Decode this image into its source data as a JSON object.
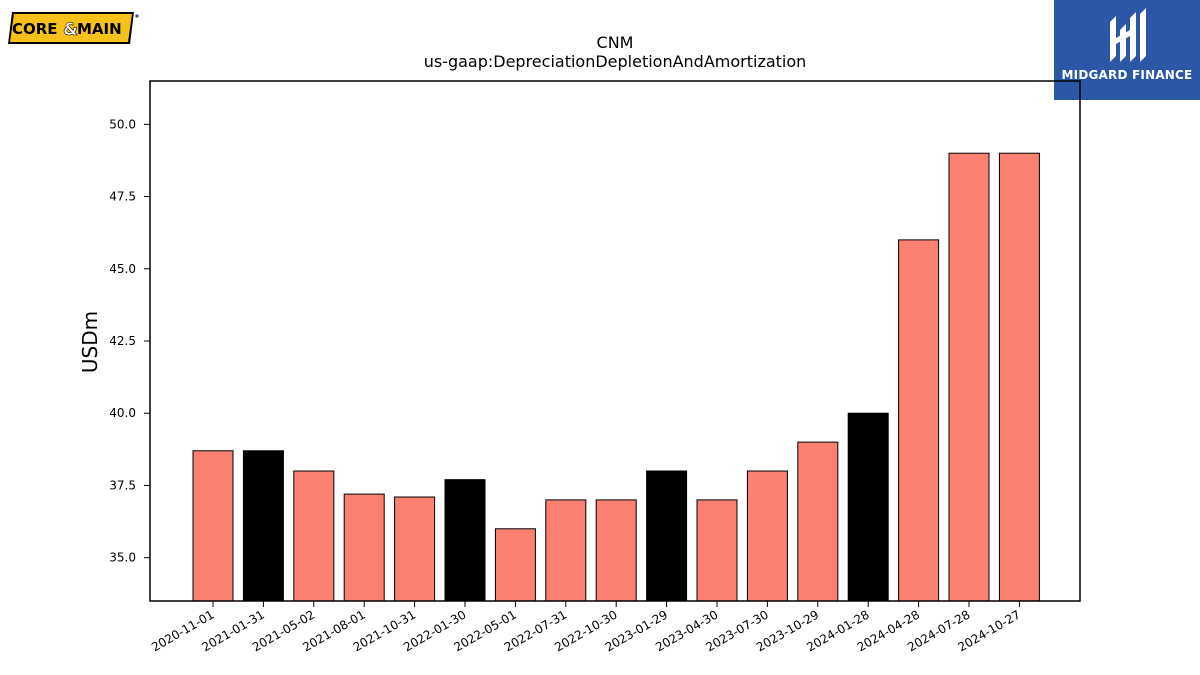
{
  "logos": {
    "left_text_a": "CORE",
    "left_text_amp": "&",
    "left_text_b": "MAIN",
    "right_text": "MIDGARD FINANCE"
  },
  "colors": {
    "bar_default": "#fa8072",
    "bar_highlight": "#000000",
    "brand_blue": "#2b57a6",
    "logo_yellow": "#f6c21a"
  },
  "chart_data": {
    "type": "bar",
    "title": "CNM",
    "subtitle": "us-gaap:DepreciationDepletionAndAmortization",
    "xlabel": "",
    "ylabel": "USDm",
    "ylim": [
      33.5,
      51.5
    ],
    "yticks": [
      "35.0",
      "37.5",
      "40.0",
      "42.5",
      "45.0",
      "47.5",
      "50.0"
    ],
    "grid": false,
    "categories": [
      "2020-11-01",
      "2021-01-31",
      "2021-05-02",
      "2021-08-01",
      "2021-10-31",
      "2022-01-30",
      "2022-05-01",
      "2022-07-31",
      "2022-10-30",
      "2023-01-29",
      "2023-04-30",
      "2023-07-30",
      "2023-10-29",
      "2024-01-28",
      "2024-04-28",
      "2024-07-28",
      "2024-10-27"
    ],
    "values": [
      38.7,
      38.7,
      38.0,
      37.2,
      37.1,
      37.7,
      36.0,
      37.0,
      37.0,
      38.0,
      37.0,
      38.0,
      39.0,
      40.0,
      46.0,
      49.0,
      49.0
    ],
    "highlighted": [
      false,
      true,
      false,
      false,
      false,
      true,
      false,
      false,
      false,
      true,
      false,
      false,
      false,
      true,
      false,
      false,
      false
    ]
  }
}
